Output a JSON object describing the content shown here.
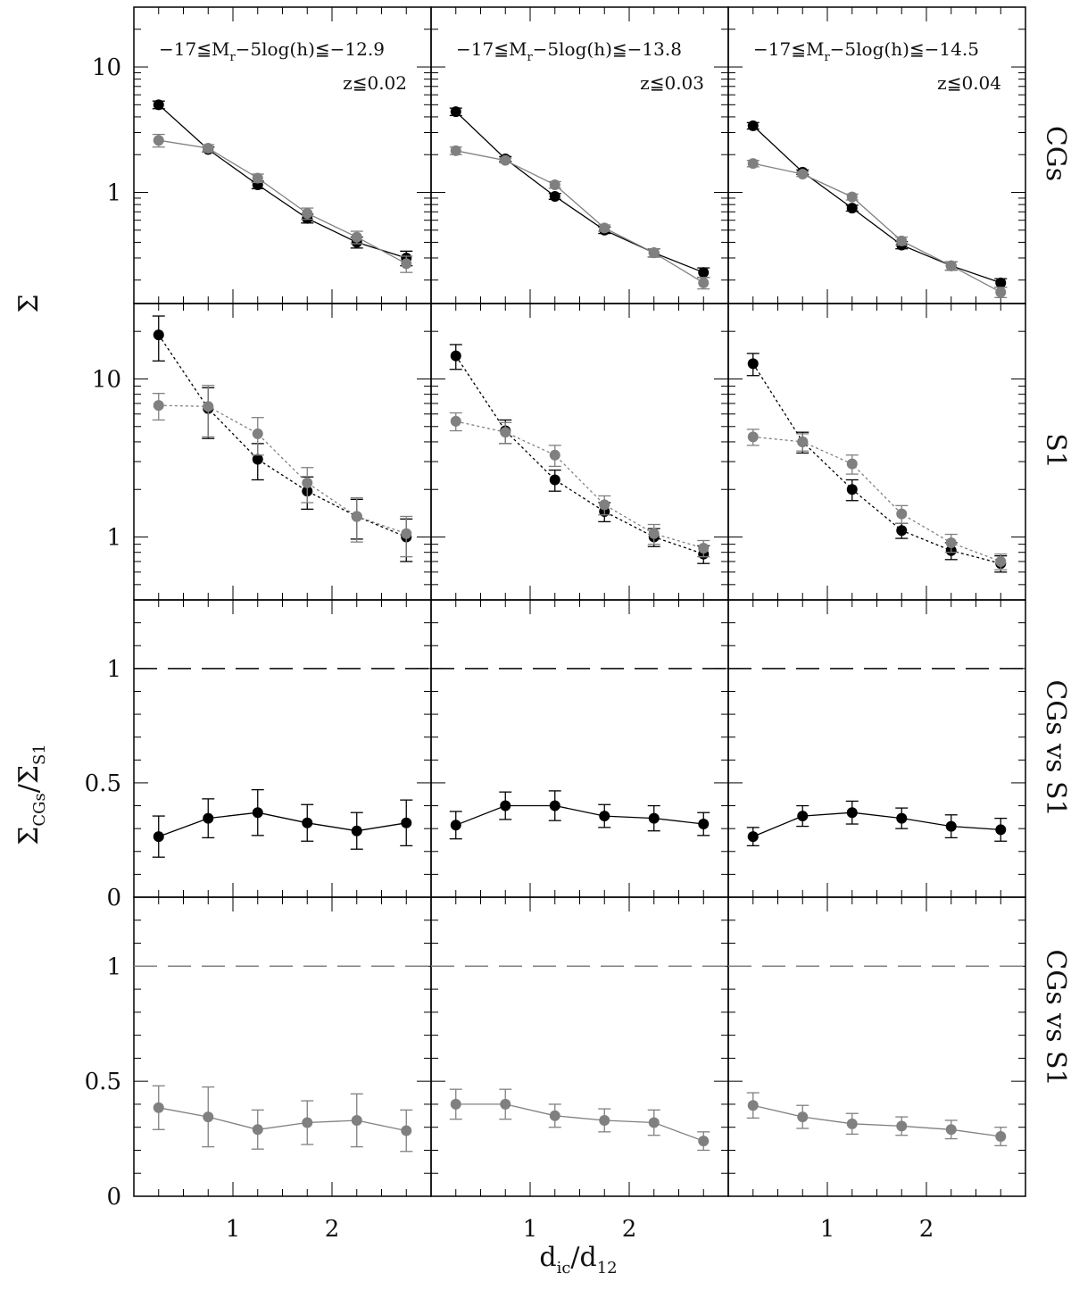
{
  "figure": {
    "x_axis_label": "d",
    "x_axis_label_sub1": "ic",
    "x_axis_label_sep": "/d",
    "x_axis_label_sub2": "12",
    "y_label_top": "Σ",
    "y_label_bottom": {
      "main": "Σ",
      "sub1": "CGs",
      "sep": "/Σ",
      "sub2": "S1"
    },
    "row_labels": [
      "CGs",
      "S1",
      "CGs vs S1",
      "CGs vs S1"
    ],
    "panel_annotations": [
      {
        "main": "−17≦M",
        "sub": "r",
        "rest": "−5log(h)≦−12.9",
        "z": "z≦0.02"
      },
      {
        "main": "−17≦M",
        "sub": "r",
        "rest": "−5log(h)≦−13.8",
        "z": "z≦0.03"
      },
      {
        "main": "−17≦M",
        "sub": "r",
        "rest": "−5log(h)≦−14.5",
        "z": "z≦0.04"
      }
    ],
    "colors": {
      "black": "#000000",
      "grey": "#808080"
    }
  },
  "chart_data": [
    {
      "type": "line",
      "row": "CGs",
      "yscale": "log",
      "ylim": [
        0.13,
        30
      ],
      "xlim": [
        0,
        3
      ],
      "x_ticks": [
        1,
        2
      ],
      "y_ticks": [
        1,
        10
      ],
      "x": [
        0.25,
        0.75,
        1.25,
        1.75,
        2.25,
        2.75
      ],
      "panels": [
        {
          "series": [
            {
              "color": "black",
              "line": "solid",
              "values": [
                5.0,
                2.2,
                1.15,
                0.62,
                0.4,
                0.3
              ],
              "err": [
                0.35,
                0.1,
                0.08,
                0.05,
                0.04,
                0.04
              ]
            },
            {
              "color": "grey",
              "line": "solid",
              "values": [
                2.6,
                2.25,
                1.3,
                0.68,
                0.44,
                0.27
              ],
              "err": [
                0.3,
                0.15,
                0.1,
                0.07,
                0.05,
                0.04
              ]
            }
          ]
        },
        {
          "series": [
            {
              "color": "black",
              "line": "solid",
              "values": [
                4.4,
                1.85,
                0.93,
                0.5,
                0.33,
                0.23
              ],
              "err": [
                0.3,
                0.08,
                0.05,
                0.03,
                0.025,
                0.02
              ]
            },
            {
              "color": "grey",
              "line": "solid",
              "values": [
                2.15,
                1.8,
                1.15,
                0.52,
                0.33,
                0.19
              ],
              "err": [
                0.15,
                0.08,
                0.07,
                0.03,
                0.025,
                0.02
              ]
            }
          ]
        },
        {
          "series": [
            {
              "color": "black",
              "line": "solid",
              "values": [
                3.4,
                1.45,
                0.75,
                0.38,
                0.26,
                0.19
              ],
              "err": [
                0.2,
                0.06,
                0.04,
                0.025,
                0.02,
                0.015
              ]
            },
            {
              "color": "grey",
              "line": "solid",
              "values": [
                1.7,
                1.4,
                0.92,
                0.41,
                0.26,
                0.16
              ],
              "err": [
                0.1,
                0.06,
                0.05,
                0.03,
                0.02,
                0.015
              ]
            }
          ]
        }
      ]
    },
    {
      "type": "line",
      "row": "S1",
      "yscale": "log",
      "ylim": [
        0.4,
        30
      ],
      "xlim": [
        0,
        3
      ],
      "x_ticks": [
        1,
        2
      ],
      "y_ticks": [
        1,
        10
      ],
      "x": [
        0.25,
        0.75,
        1.25,
        1.75,
        2.25,
        2.75
      ],
      "panels": [
        {
          "series": [
            {
              "color": "black",
              "line": "dotted",
              "values": [
                19.0,
                6.5,
                3.1,
                1.95,
                1.35,
                1.0
              ],
              "err": [
                6.0,
                2.3,
                0.8,
                0.45,
                0.38,
                0.3
              ]
            },
            {
              "color": "grey",
              "line": "dotted",
              "values": [
                6.8,
                6.7,
                4.5,
                2.2,
                1.35,
                1.05
              ],
              "err": [
                1.3,
                2.4,
                1.2,
                0.55,
                0.42,
                0.3
              ]
            }
          ]
        },
        {
          "series": [
            {
              "color": "black",
              "line": "dotted",
              "values": [
                14.0,
                4.7,
                2.3,
                1.45,
                1.0,
                0.78
              ],
              "err": [
                2.5,
                0.8,
                0.35,
                0.2,
                0.13,
                0.1
              ]
            },
            {
              "color": "grey",
              "line": "dotted",
              "values": [
                5.4,
                4.6,
                3.3,
                1.6,
                1.05,
                0.85
              ],
              "err": [
                0.7,
                0.7,
                0.5,
                0.22,
                0.15,
                0.1
              ]
            }
          ]
        },
        {
          "series": [
            {
              "color": "black",
              "line": "dotted",
              "values": [
                12.5,
                4.0,
                2.0,
                1.1,
                0.82,
                0.68
              ],
              "err": [
                2.0,
                0.6,
                0.3,
                0.12,
                0.1,
                0.08
              ]
            },
            {
              "color": "grey",
              "line": "dotted",
              "values": [
                4.3,
                4.0,
                2.9,
                1.4,
                0.92,
                0.7
              ],
              "err": [
                0.5,
                0.5,
                0.4,
                0.18,
                0.12,
                0.08
              ]
            }
          ]
        }
      ]
    },
    {
      "type": "line",
      "row": "CGs vs S1",
      "yscale": "linear",
      "ylim": [
        0,
        1.3
      ],
      "xlim": [
        0,
        3
      ],
      "x_ticks": [
        1,
        2
      ],
      "y_ticks": [
        0,
        0.5,
        1
      ],
      "reference_line": {
        "y": 1,
        "color": "black",
        "style": "dashed"
      },
      "x": [
        0.25,
        0.75,
        1.25,
        1.75,
        2.25,
        2.75
      ],
      "panels": [
        {
          "series": [
            {
              "color": "black",
              "line": "solid",
              "values": [
                0.265,
                0.345,
                0.37,
                0.325,
                0.29,
                0.325
              ],
              "err": [
                0.09,
                0.085,
                0.1,
                0.08,
                0.08,
                0.1
              ]
            }
          ]
        },
        {
          "series": [
            {
              "color": "black",
              "line": "solid",
              "values": [
                0.315,
                0.4,
                0.4,
                0.355,
                0.345,
                0.32
              ],
              "err": [
                0.06,
                0.06,
                0.065,
                0.05,
                0.055,
                0.05
              ]
            }
          ]
        },
        {
          "series": [
            {
              "color": "black",
              "line": "solid",
              "values": [
                0.265,
                0.355,
                0.37,
                0.345,
                0.31,
                0.295
              ],
              "err": [
                0.04,
                0.045,
                0.05,
                0.045,
                0.05,
                0.05
              ]
            }
          ]
        }
      ]
    },
    {
      "type": "line",
      "row": "CGs vs S1",
      "yscale": "linear",
      "ylim": [
        0,
        1.3
      ],
      "xlim": [
        0,
        3
      ],
      "x_ticks": [
        1,
        2
      ],
      "y_ticks": [
        0,
        0.5,
        1
      ],
      "reference_line": {
        "y": 1,
        "color": "grey",
        "style": "dashed"
      },
      "x": [
        0.25,
        0.75,
        1.25,
        1.75,
        2.25,
        2.75
      ],
      "panels": [
        {
          "series": [
            {
              "color": "grey",
              "line": "solid",
              "values": [
                0.385,
                0.345,
                0.29,
                0.32,
                0.33,
                0.285
              ],
              "err": [
                0.095,
                0.13,
                0.085,
                0.095,
                0.115,
                0.09
              ]
            }
          ]
        },
        {
          "series": [
            {
              "color": "grey",
              "line": "solid",
              "values": [
                0.4,
                0.4,
                0.35,
                0.33,
                0.32,
                0.24
              ],
              "err": [
                0.065,
                0.065,
                0.05,
                0.05,
                0.055,
                0.04
              ]
            }
          ]
        },
        {
          "series": [
            {
              "color": "grey",
              "line": "solid",
              "values": [
                0.395,
                0.345,
                0.315,
                0.305,
                0.29,
                0.26
              ],
              "err": [
                0.055,
                0.05,
                0.045,
                0.04,
                0.04,
                0.04
              ]
            }
          ]
        }
      ]
    }
  ]
}
